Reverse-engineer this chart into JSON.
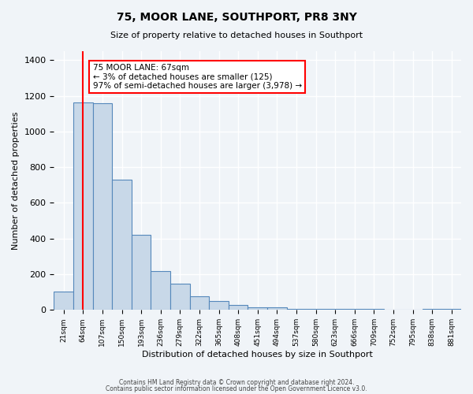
{
  "title": "75, MOOR LANE, SOUTHPORT, PR8 3NY",
  "subtitle": "Size of property relative to detached houses in Southport",
  "xlabel": "Distribution of detached houses by size in Southport",
  "ylabel": "Number of detached properties",
  "bin_labels": [
    "21sqm",
    "64sqm",
    "107sqm",
    "150sqm",
    "193sqm",
    "236sqm",
    "279sqm",
    "322sqm",
    "365sqm",
    "408sqm",
    "451sqm",
    "494sqm",
    "537sqm",
    "580sqm",
    "623sqm",
    "666sqm",
    "709sqm",
    "752sqm",
    "795sqm",
    "838sqm",
    "881sqm"
  ],
  "bar_values": [
    105,
    1165,
    1160,
    730,
    420,
    220,
    148,
    75,
    50,
    30,
    15,
    15,
    5,
    5,
    5,
    5,
    5,
    0,
    0,
    5,
    5
  ],
  "bar_color": "#c8d8e8",
  "bar_edge_color": "#5588bb",
  "vline_x": 1,
  "vline_color": "red",
  "annotation_text": "75 MOOR LANE: 67sqm\n← 3% of detached houses are smaller (125)\n97% of semi-detached houses are larger (3,978) →",
  "annotation_box_color": "white",
  "annotation_box_edge": "red",
  "ylim": [
    0,
    1450
  ],
  "yticks": [
    0,
    200,
    400,
    600,
    800,
    1000,
    1200,
    1400
  ],
  "footer_line1": "Contains HM Land Registry data © Crown copyright and database right 2024.",
  "footer_line2": "Contains public sector information licensed under the Open Government Licence v3.0.",
  "background_color": "#f0f4f8",
  "grid_color": "white"
}
